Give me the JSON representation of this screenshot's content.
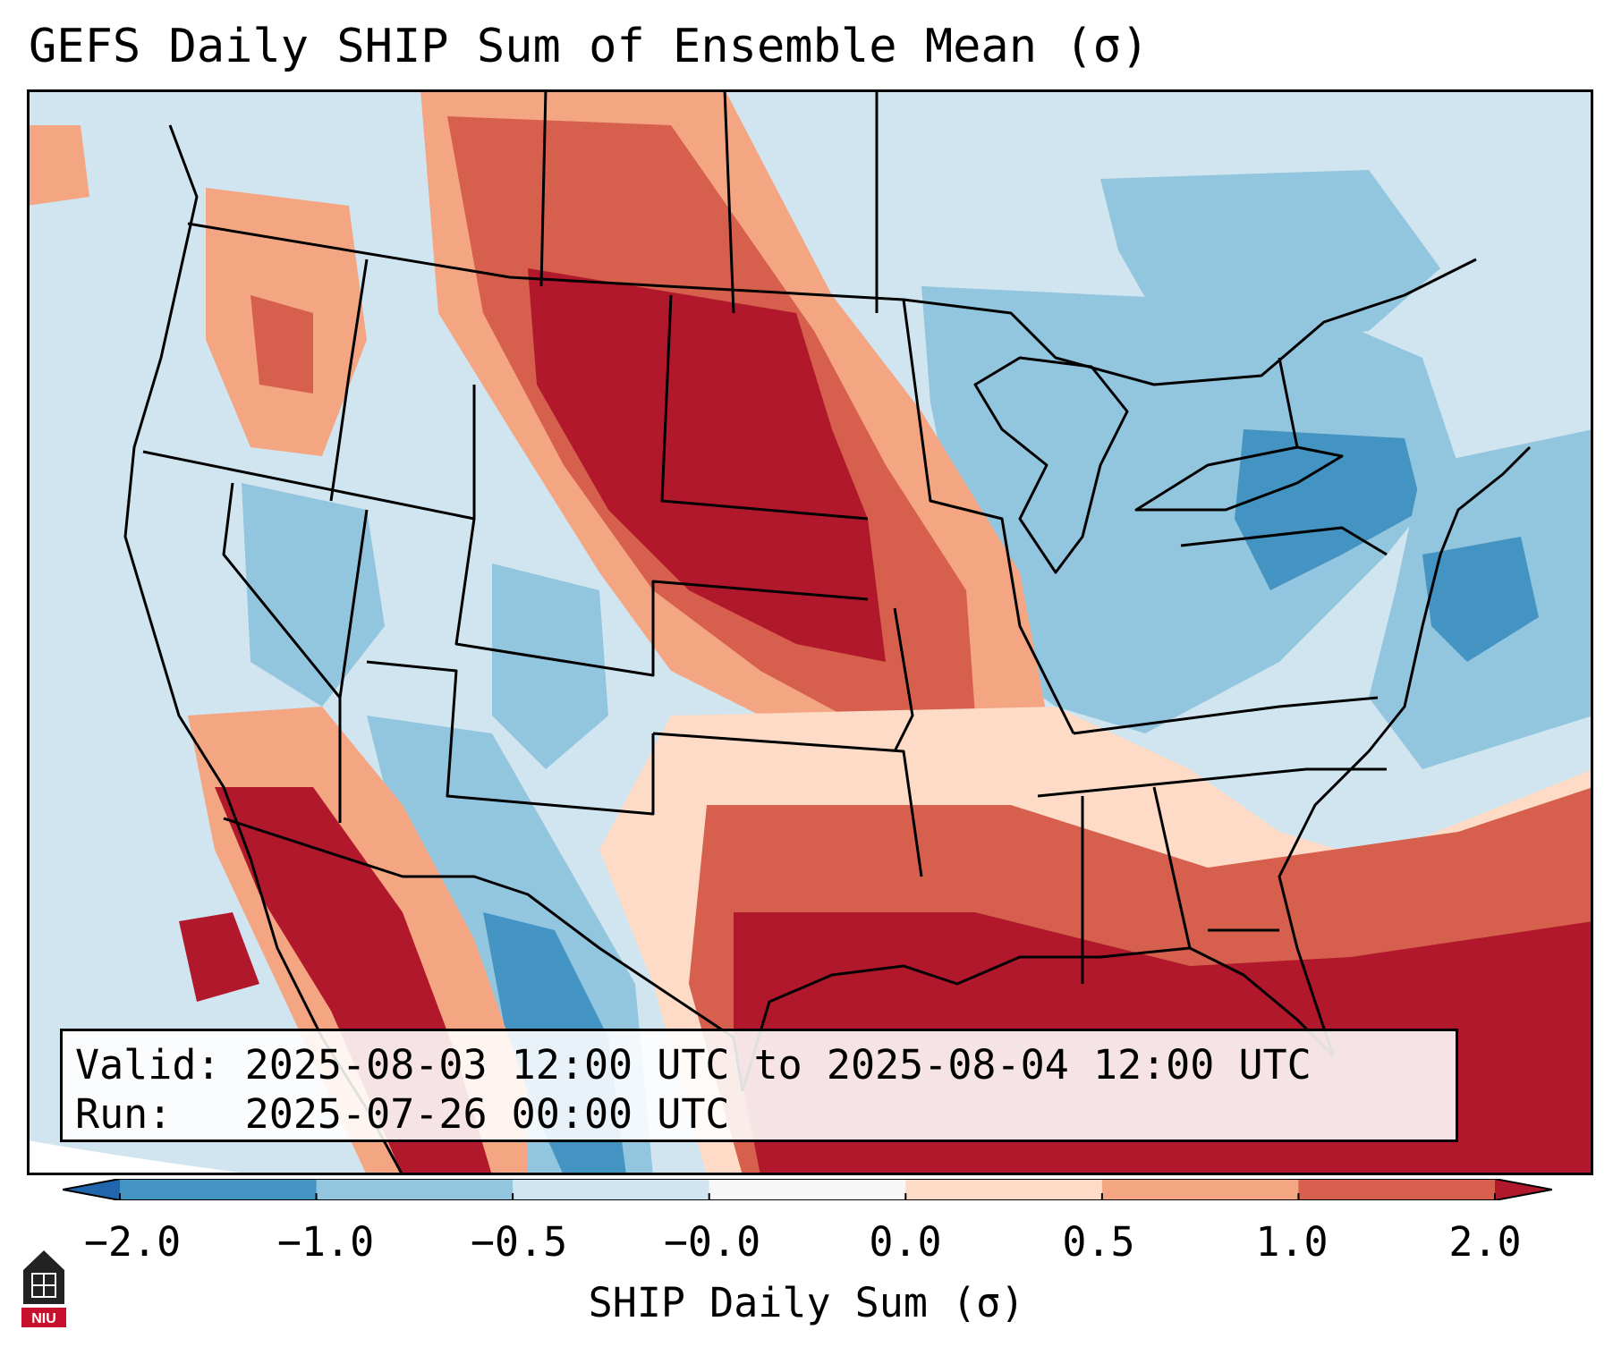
{
  "title": "GEFS Daily SHIP Sum of Ensemble Mean (σ)",
  "info": {
    "valid_label": "Valid:",
    "valid_value": "2025-08-03 12:00 UTC to 2025-08-04 12:00 UTC",
    "run_label": "Run:",
    "run_value": "2025-07-26 00:00 UTC"
  },
  "colorbar": {
    "label": "SHIP Daily Sum (σ)",
    "ticks": [
      "−2.0",
      "−1.0",
      "−0.5",
      "−0.0",
      "0.0",
      "0.5",
      "1.0",
      "2.0"
    ],
    "bin_colors": [
      "#2166ac",
      "#4393c3",
      "#92c5de",
      "#d1e5f0",
      "#f7f7f7",
      "#fddbc7",
      "#f4a582",
      "#d6604d",
      "#b2182b"
    ]
  },
  "logo": {
    "name": "NIU"
  },
  "colors": {
    "land_background": "#d1e5f0",
    "strong_positive": "#b2182b",
    "positive": "#d6604d",
    "weak_positive": "#f4a582",
    "slight_positive": "#fddbc7",
    "slight_negative": "#92c5de",
    "negative": "#4393c3"
  }
}
